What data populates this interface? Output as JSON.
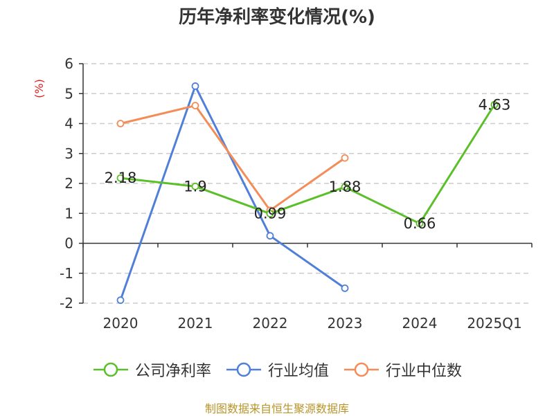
{
  "chart_data": {
    "type": "line",
    "title": "历年净利率变化情况(%)",
    "ylabel": "(%)",
    "categories": [
      "2020",
      "2021",
      "2022",
      "2023",
      "2024",
      "2025Q1"
    ],
    "ylim": [
      -2,
      6
    ],
    "yticks": [
      "6",
      "5",
      "4",
      "3",
      "2",
      "1",
      "0",
      "-1",
      "-2"
    ],
    "grid": true,
    "legend_position": "bottom",
    "series": [
      {
        "name": "公司净利率",
        "color": "#5cbf2a",
        "values": [
          2.18,
          1.9,
          0.99,
          1.88,
          0.66,
          4.63
        ],
        "labels": [
          "2.18",
          "1.9",
          "0.99",
          "1.88",
          "0.66",
          "4.63"
        ]
      },
      {
        "name": "行业均值",
        "color": "#4f7fd9",
        "values": [
          -1.9,
          5.25,
          0.25,
          -1.5,
          null,
          null
        ]
      },
      {
        "name": "行业中位数",
        "color": "#f48c58",
        "values": [
          4.0,
          4.6,
          1.1,
          2.85,
          null,
          null
        ]
      }
    ]
  },
  "source": "制图数据来自恒生聚源数据库"
}
